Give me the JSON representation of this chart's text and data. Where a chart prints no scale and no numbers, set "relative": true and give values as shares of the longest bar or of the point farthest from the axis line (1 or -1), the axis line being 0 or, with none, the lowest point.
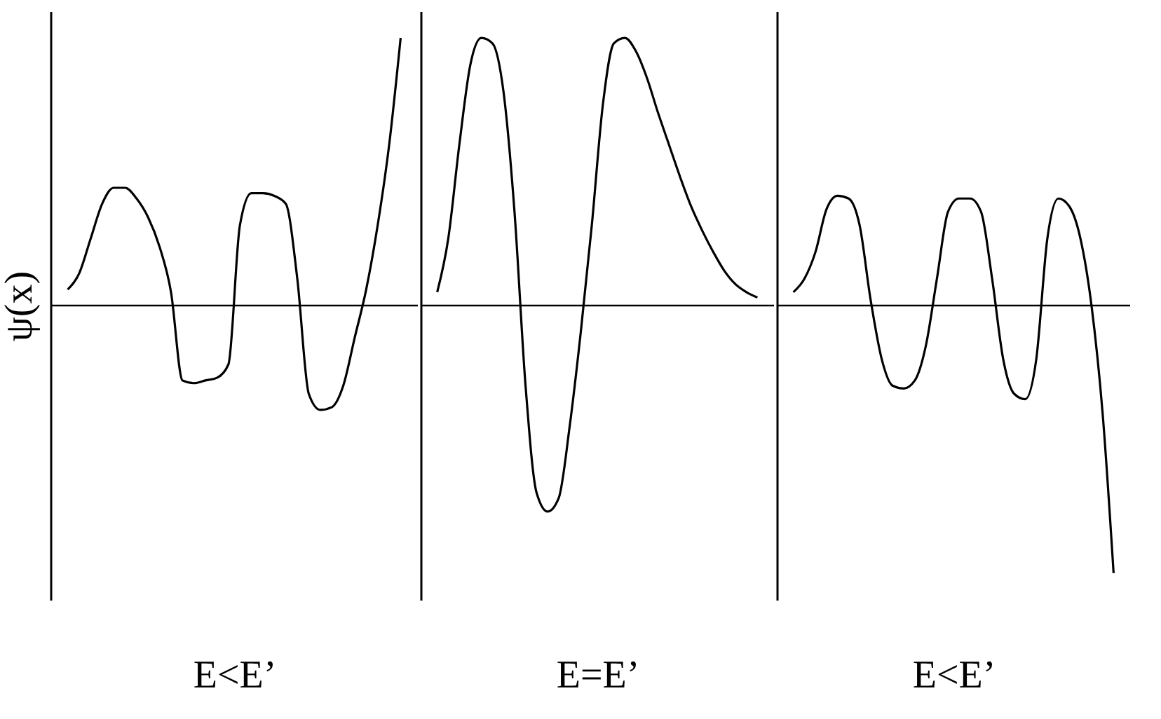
{
  "chart_data": [
    {
      "type": "line",
      "relative": true,
      "xlabel": "E<E’",
      "ylabel": "ψ(x)",
      "tick_labels": false,
      "categories": [
        null,
        null,
        null,
        null,
        null,
        null,
        null,
        null,
        null,
        null,
        null,
        null,
        null,
        null,
        null,
        null,
        null,
        null,
        null,
        null,
        null,
        null,
        null,
        null,
        null,
        null,
        null,
        null,
        null,
        null
      ],
      "series": [
        {
          "color": "#000000",
          "values": [
            0.06,
            0.12,
            0.25,
            0.38,
            0.44,
            0.44,
            0.4,
            0.33,
            0.22,
            0.05,
            -0.28,
            -0.29,
            -0.28,
            -0.27,
            -0.22,
            0.3,
            0.42,
            0.42,
            0.41,
            0.38,
            0.1,
            -0.33,
            -0.39,
            -0.38,
            -0.3,
            -0.12,
            0.06,
            0.3,
            0.6,
            1.0
          ]
        }
      ]
    },
    {
      "type": "line",
      "relative": true,
      "xlabel": "E=E’",
      "tick_labels": false,
      "categories": [
        null,
        null,
        null,
        null,
        null,
        null,
        null,
        null,
        null,
        null,
        null,
        null,
        null,
        null,
        null,
        null,
        null,
        null,
        null,
        null,
        null,
        null,
        null,
        null,
        null,
        null,
        null,
        null,
        null,
        null
      ],
      "series": [
        {
          "color": "#000000",
          "values": [
            0.05,
            0.25,
            0.6,
            0.9,
            1.0,
            0.98,
            0.8,
            0.35,
            -0.3,
            -0.7,
            -0.77,
            -0.72,
            -0.45,
            -0.1,
            0.3,
            0.75,
            0.98,
            1.0,
            0.95,
            0.85,
            0.72,
            0.6,
            0.48,
            0.37,
            0.28,
            0.2,
            0.13,
            0.08,
            0.05,
            0.03
          ]
        }
      ]
    },
    {
      "type": "line",
      "relative": true,
      "xlabel": "E<E’",
      "tick_labels": false,
      "categories": [
        null,
        null,
        null,
        null,
        null,
        null,
        null,
        null,
        null,
        null,
        null,
        null,
        null,
        null,
        null,
        null,
        null,
        null,
        null,
        null,
        null,
        null,
        null,
        null,
        null,
        null,
        null,
        null,
        null,
        null
      ],
      "series": [
        {
          "color": "#000000",
          "values": [
            0.05,
            0.1,
            0.2,
            0.36,
            0.41,
            0.4,
            0.3,
            0.02,
            -0.2,
            -0.3,
            -0.31,
            -0.28,
            -0.15,
            0.1,
            0.35,
            0.4,
            0.4,
            0.35,
            0.1,
            -0.2,
            -0.33,
            -0.35,
            -0.2,
            0.25,
            0.4,
            0.37,
            0.25,
            0.0,
            -0.4,
            -1.0
          ]
        }
      ]
    }
  ]
}
